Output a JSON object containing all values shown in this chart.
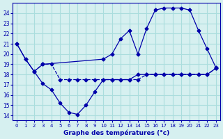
{
  "xlabel": "Graphe des températures (°c)",
  "bg_color": "#d6f0f0",
  "grid_color": "#aadddd",
  "line_color": "#0000aa",
  "x_ticks": [
    0,
    1,
    2,
    3,
    4,
    5,
    6,
    7,
    8,
    9,
    10,
    11,
    12,
    13,
    14,
    15,
    16,
    17,
    18,
    19,
    20,
    21,
    22,
    23
  ],
  "ylim": [
    13.5,
    25
  ],
  "yticks": [
    14,
    15,
    16,
    17,
    18,
    19,
    20,
    21,
    22,
    23,
    24
  ],
  "line1_x": [
    0,
    1,
    2,
    3,
    10,
    11,
    12,
    13,
    14,
    15,
    16,
    17,
    18,
    19,
    20,
    21,
    22,
    23
  ],
  "line1_y": [
    21,
    19.5,
    18.3,
    19,
    19.5,
    20,
    21.5,
    22.3,
    20,
    22.5,
    24.3,
    24.5,
    24.5,
    24.5,
    24.3,
    22.3,
    20.5,
    18.7
  ],
  "line2_x": [
    0,
    1,
    2,
    3,
    4,
    5,
    6,
    7,
    8,
    9,
    10,
    11,
    12,
    13,
    14,
    15,
    16,
    17,
    18,
    19,
    20,
    21,
    22,
    23
  ],
  "line2_y": [
    21,
    19.5,
    18.3,
    17.1,
    16.5,
    15.2,
    14.3,
    14.1,
    15.0,
    16.3,
    17.5,
    17.5,
    17.5,
    17.5,
    18,
    18,
    18,
    18,
    18,
    18,
    18,
    18,
    18,
    18.6
  ],
  "line3_x": [
    2,
    3,
    4,
    5,
    6,
    7,
    8,
    9,
    10,
    11,
    12,
    13,
    14,
    15,
    16,
    17,
    18,
    19,
    20,
    21,
    22,
    23
  ],
  "line3_y": [
    18.3,
    19,
    19,
    17.5,
    17.5,
    17.5,
    17.5,
    17.5,
    17.5,
    17.5,
    17.5,
    17.5,
    17.5,
    18,
    18,
    18,
    18,
    18,
    18,
    18,
    18,
    18.6
  ]
}
